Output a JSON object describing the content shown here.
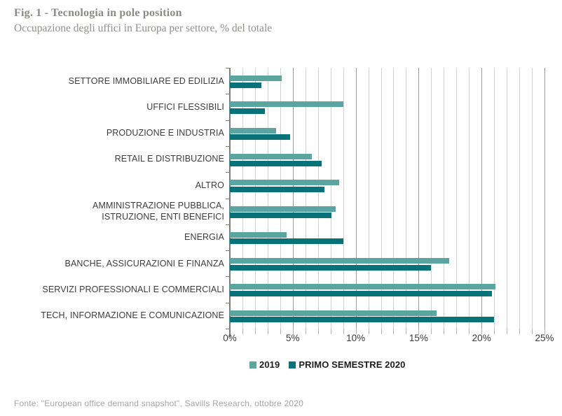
{
  "header": {
    "title": "Fig. 1 - Tecnologia in pole position",
    "subtitle": "Occupazione degli uffici in Europa per settore, % del totale"
  },
  "chart_data": {
    "type": "bar",
    "orientation": "horizontal",
    "title": "Fig. 1 - Tecnologia in pole position",
    "subtitle": "Occupazione degli uffici in Europa per settore, % del totale",
    "categories": [
      "SETTORE IMMOBILIARE ED EDILIZIA",
      "UFFICI FLESSIBILI",
      "PRODUZIONE E INDUSTRIA",
      "RETAIL E DISTRIBUZIONE",
      "ALTRO",
      "AMMINISTRAZIONE PUBBLICA,\nISTRUZIONE, ENTI BENEFICI",
      "ENERGIA",
      "BANCHE, ASSICURAZIONI E FINANZA",
      "SERVIZI PROFESSIONALI E COMMERCIALI",
      "TECH, INFORMAZIONE E COMUNICAZIONE"
    ],
    "series": [
      {
        "name": "2019",
        "color": "#5BA5A1",
        "values": [
          4.1,
          9.0,
          3.7,
          6.5,
          8.7,
          8.4,
          4.5,
          17.4,
          21.1,
          16.4
        ]
      },
      {
        "name": "PRIMO SEMESTRE 2020",
        "color": "#077278",
        "values": [
          2.5,
          2.8,
          4.8,
          7.3,
          7.5,
          8.1,
          9.0,
          16.0,
          20.8,
          21.0
        ]
      }
    ],
    "xlim": [
      0,
      25
    ],
    "x_ticks_labeled": [
      "0%",
      "5%",
      "10%",
      "15%",
      "20%",
      "25%"
    ],
    "x_tick_values": [
      0,
      5,
      10,
      15,
      20,
      25
    ],
    "minor_grid_step_percent": 1,
    "grid": "vertical-minor-and-major",
    "legend_position": "bottom",
    "value_unit": "% del totale"
  },
  "footer": {
    "source": "Fonte: \"European office demand snapshot\", Savills Research, ottobre 2020"
  }
}
